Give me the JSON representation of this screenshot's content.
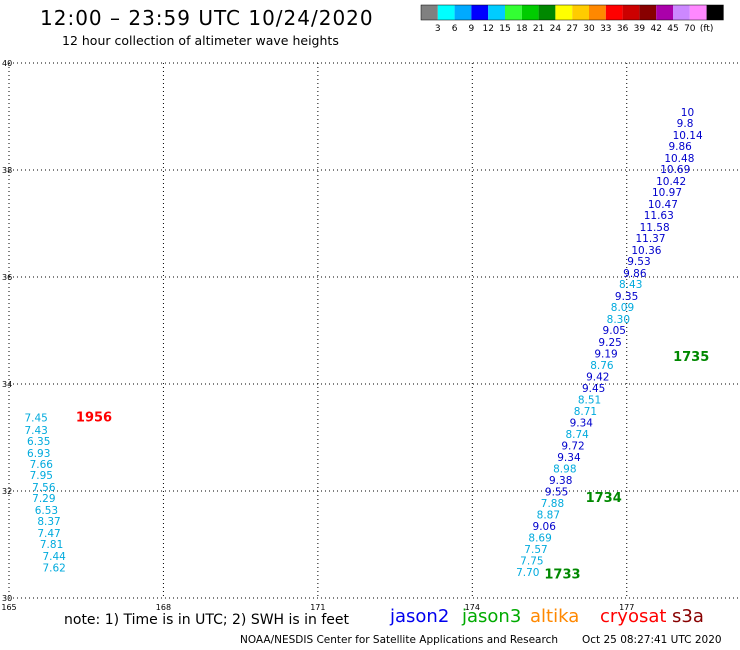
{
  "header": {
    "title": "12:00 – 23:59 UTC 10/24/2020",
    "subtitle": "12 hour collection of altimeter wave heights"
  },
  "colorbar": {
    "colors": [
      "#808080",
      "#00ffff",
      "#00aaff",
      "#0000ff",
      "#00ccff",
      "#33ff33",
      "#00cc00",
      "#008800",
      "#ffff00",
      "#ffcc00",
      "#ff8800",
      "#ff0000",
      "#cc0000",
      "#880000",
      "#aa00aa",
      "#cc88ff",
      "#ff88ff",
      "#000000"
    ],
    "labels": [
      "3",
      "6",
      "9",
      "12",
      "15",
      "18",
      "21",
      "24",
      "27",
      "30",
      "33",
      "36",
      "39",
      "42",
      "45",
      "70",
      "(ft)"
    ]
  },
  "chart_data": {
    "type": "scatter",
    "title": "12:00 – 23:59 UTC 10/24/2020",
    "subtitle": "12 hour collection of altimeter wave heights",
    "xlim": [
      165,
      179.2
    ],
    "ylim": [
      30,
      40
    ],
    "x_ticks": [
      "165",
      "168",
      "171",
      "174",
      "177"
    ],
    "y_ticks": [
      "30",
      "32",
      "34",
      "36",
      "38",
      "40"
    ],
    "grid": true,
    "tracks": [
      {
        "satellite": "cryosat",
        "color": "#00aadd",
        "time_label": "1956",
        "time_label_color": "#ff0000",
        "time_label_pos": [
          166.3,
          33.3
        ],
        "points": [
          {
            "lon": 165.3,
            "lat": 33.3,
            "swh": "7.45"
          },
          {
            "lon": 165.3,
            "lat": 33.07,
            "swh": "7.43"
          },
          {
            "lon": 165.35,
            "lat": 32.86,
            "swh": "6.35"
          },
          {
            "lon": 165.35,
            "lat": 32.64,
            "swh": "6.93"
          },
          {
            "lon": 165.4,
            "lat": 32.43,
            "swh": "7.66"
          },
          {
            "lon": 165.4,
            "lat": 32.22,
            "swh": "7.95"
          },
          {
            "lon": 165.45,
            "lat": 32.0,
            "swh": "7.56"
          },
          {
            "lon": 165.45,
            "lat": 31.79,
            "swh": "7.29"
          },
          {
            "lon": 165.5,
            "lat": 31.57,
            "swh": "6.53"
          },
          {
            "lon": 165.55,
            "lat": 31.36,
            "swh": "8.37"
          },
          {
            "lon": 165.55,
            "lat": 31.14,
            "swh": "7.47"
          },
          {
            "lon": 165.6,
            "lat": 30.93,
            "swh": "7.81"
          },
          {
            "lon": 165.65,
            "lat": 30.71,
            "swh": "7.44"
          },
          {
            "lon": 165.65,
            "lat": 30.5,
            "swh": "7.62"
          }
        ]
      },
      {
        "satellite": "jason3",
        "color": "#0000cc",
        "time_labels": [
          {
            "text": "1733",
            "lon": 175.4,
            "lat": 30.36
          },
          {
            "text": "1734",
            "lon": 176.2,
            "lat": 31.79
          },
          {
            "text": "1735",
            "lon": 177.9,
            "lat": 34.43
          }
        ],
        "time_label_color": "#008800",
        "points": [
          {
            "lon": 174.85,
            "lat": 30.41,
            "swh": "7.70",
            "color": "#00aadd"
          },
          {
            "lon": 174.93,
            "lat": 30.63,
            "swh": "7.75",
            "color": "#00aadd"
          },
          {
            "lon": 175.01,
            "lat": 30.84,
            "swh": "7.57",
            "color": "#00aadd"
          },
          {
            "lon": 175.09,
            "lat": 31.06,
            "swh": "8.69",
            "color": "#00aadd"
          },
          {
            "lon": 175.17,
            "lat": 31.27,
            "swh": "9.06",
            "color": "#0000cc"
          },
          {
            "lon": 175.25,
            "lat": 31.49,
            "swh": "8.87",
            "color": "#00aadd"
          },
          {
            "lon": 175.33,
            "lat": 31.7,
            "swh": "7.88",
            "color": "#00aadd"
          },
          {
            "lon": 175.41,
            "lat": 31.92,
            "swh": "9.55",
            "color": "#0000cc"
          },
          {
            "lon": 175.49,
            "lat": 32.13,
            "swh": "9.38",
            "color": "#0000cc"
          },
          {
            "lon": 175.57,
            "lat": 32.35,
            "swh": "8.98",
            "color": "#00aadd"
          },
          {
            "lon": 175.65,
            "lat": 32.56,
            "swh": "9.34",
            "color": "#0000cc"
          },
          {
            "lon": 175.73,
            "lat": 32.78,
            "swh": "9.72",
            "color": "#0000cc"
          },
          {
            "lon": 175.81,
            "lat": 32.99,
            "swh": "8.74",
            "color": "#00aadd"
          },
          {
            "lon": 175.89,
            "lat": 33.21,
            "swh": "9.34",
            "color": "#0000cc"
          },
          {
            "lon": 175.97,
            "lat": 33.42,
            "swh": "8.71",
            "color": "#00aadd"
          },
          {
            "lon": 176.05,
            "lat": 33.64,
            "swh": "8.51",
            "color": "#00aadd"
          },
          {
            "lon": 176.13,
            "lat": 33.85,
            "swh": "9.45",
            "color": "#0000cc"
          },
          {
            "lon": 176.21,
            "lat": 34.07,
            "swh": "9.42",
            "color": "#0000cc"
          },
          {
            "lon": 176.29,
            "lat": 34.28,
            "swh": "8.76",
            "color": "#00aadd"
          },
          {
            "lon": 176.37,
            "lat": 34.5,
            "swh": "9.19",
            "color": "#0000cc"
          },
          {
            "lon": 176.45,
            "lat": 34.71,
            "swh": "9.25",
            "color": "#0000cc"
          },
          {
            "lon": 176.53,
            "lat": 34.93,
            "swh": "9.05",
            "color": "#0000cc"
          },
          {
            "lon": 176.61,
            "lat": 35.14,
            "swh": "8.30",
            "color": "#00aadd"
          },
          {
            "lon": 176.69,
            "lat": 35.36,
            "swh": "8.09",
            "color": "#00aadd"
          },
          {
            "lon": 176.77,
            "lat": 35.57,
            "swh": "9.35",
            "color": "#0000cc"
          },
          {
            "lon": 176.85,
            "lat": 35.79,
            "swh": "8.43",
            "color": "#00aadd"
          },
          {
            "lon": 176.93,
            "lat": 36.0,
            "swh": "9.86",
            "color": "#0000cc"
          },
          {
            "lon": 177.01,
            "lat": 36.22,
            "swh": "9.53",
            "color": "#0000cc"
          },
          {
            "lon": 177.09,
            "lat": 36.43,
            "swh": "10.36",
            "color": "#0000cc"
          },
          {
            "lon": 177.17,
            "lat": 36.65,
            "swh": "11.37",
            "color": "#0000cc"
          },
          {
            "lon": 177.25,
            "lat": 36.86,
            "swh": "11.58",
            "color": "#0000cc"
          },
          {
            "lon": 177.33,
            "lat": 37.08,
            "swh": "11.63",
            "color": "#0000cc"
          },
          {
            "lon": 177.41,
            "lat": 37.29,
            "swh": "10.47",
            "color": "#0000cc"
          },
          {
            "lon": 177.49,
            "lat": 37.51,
            "swh": "10.97",
            "color": "#0000cc"
          },
          {
            "lon": 177.57,
            "lat": 37.72,
            "swh": "10.42",
            "color": "#0000cc"
          },
          {
            "lon": 177.65,
            "lat": 37.94,
            "swh": "10.69",
            "color": "#0000cc"
          },
          {
            "lon": 177.73,
            "lat": 38.15,
            "swh": "10.48",
            "color": "#0000cc"
          },
          {
            "lon": 177.81,
            "lat": 38.37,
            "swh": "9.86",
            "color": "#0000cc"
          },
          {
            "lon": 177.89,
            "lat": 38.58,
            "swh": "10.14",
            "color": "#0000cc"
          },
          {
            "lon": 177.97,
            "lat": 38.8,
            "swh": "9.8",
            "color": "#0000cc"
          },
          {
            "lon": 178.05,
            "lat": 39.01,
            "swh": "10",
            "color": "#0000cc"
          }
        ]
      }
    ]
  },
  "note": "note:  1) Time is in UTC;  2) SWH is in feet",
  "satellites": [
    {
      "name": "jason2",
      "color": "#0000ee"
    },
    {
      "name": "jason3",
      "color": "#00aa00"
    },
    {
      "name": "altika",
      "color": "#ff8800"
    },
    {
      "name": "cryosat",
      "color": "#ff0000"
    },
    {
      "name": "s3a",
      "color": "#880000"
    }
  ],
  "footer": {
    "credit": "NOAA/NESDIS Center for Satellite Applications and Research",
    "timestamp": "Oct 25 08:27:41 UTC 2020"
  }
}
